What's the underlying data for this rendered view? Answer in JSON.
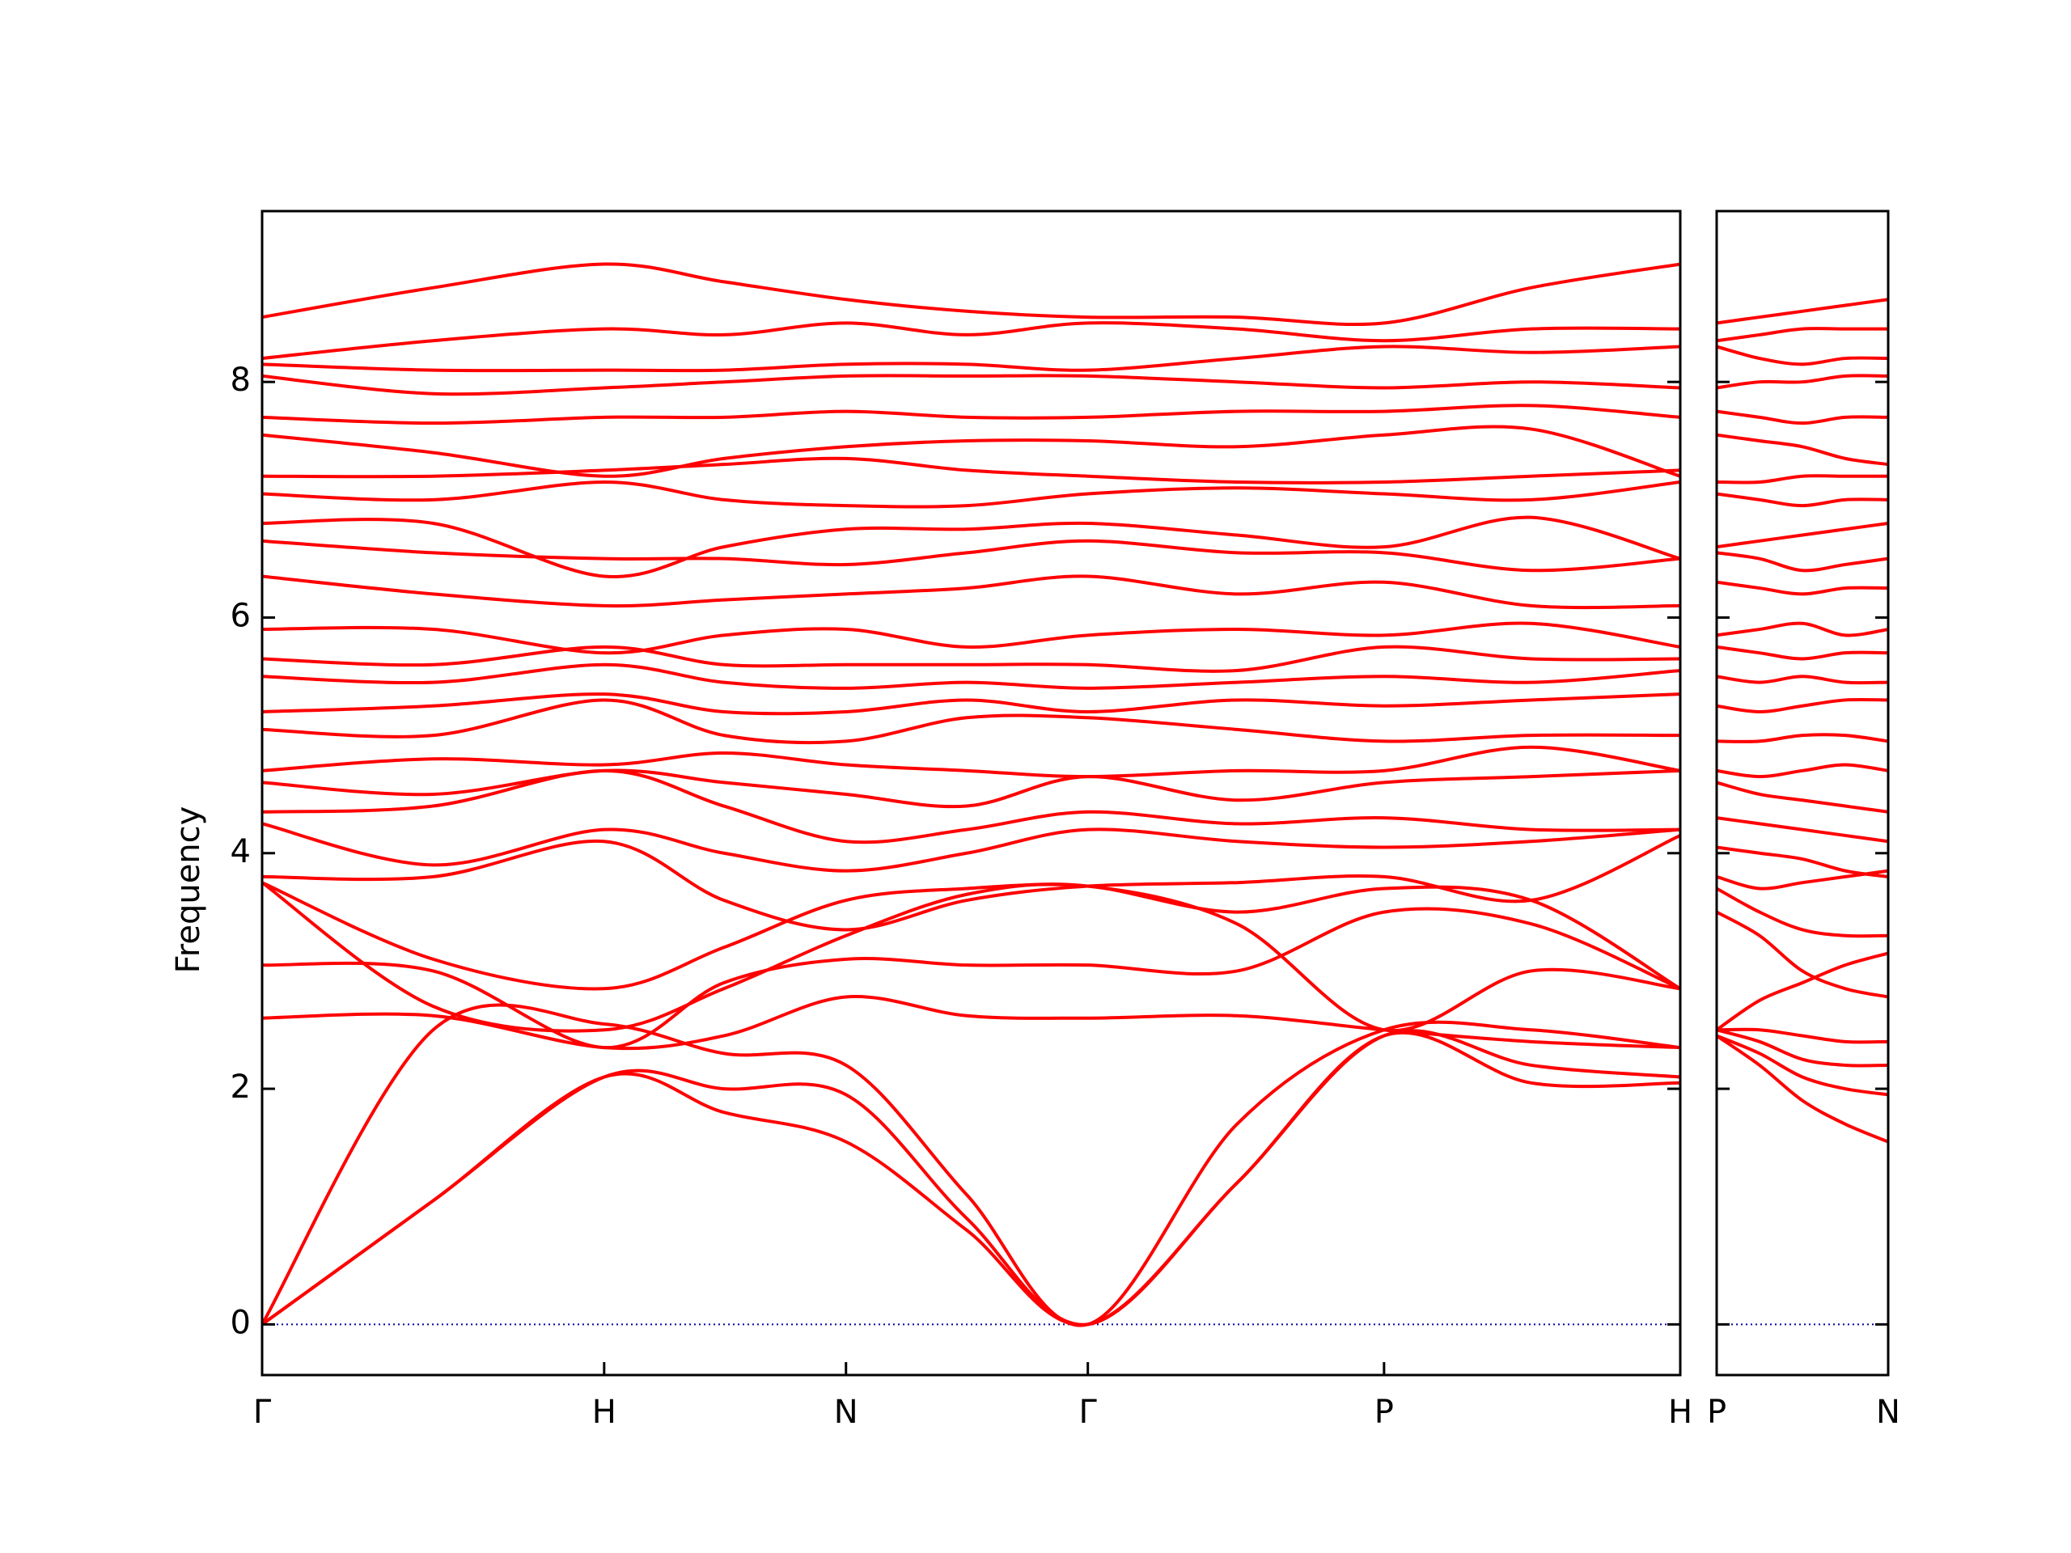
{
  "chart_data": [
    {
      "type": "line",
      "ylabel": "Frequency",
      "color": "#ff0000",
      "x": [
        0,
        0.5,
        1,
        1.35,
        1.707,
        2.06,
        2.414,
        2.85,
        3.28,
        3.71,
        4.146
      ],
      "xlim": [
        0,
        4.146
      ],
      "xticks": [
        {
          "value": 0,
          "label": "Γ"
        },
        {
          "value": 1,
          "label": "H"
        },
        {
          "value": 1.707,
          "label": "N"
        },
        {
          "value": 2.414,
          "label": "Γ"
        },
        {
          "value": 3.28,
          "label": "P"
        },
        {
          "value": 4.146,
          "label": "H"
        }
      ],
      "ylim": [
        -0.43,
        9.45
      ],
      "yticks": [
        0,
        2,
        4,
        6,
        8
      ],
      "series": [
        {
          "values": [
            0,
            1.05,
            2.1,
            1.8,
            1.55,
            0.8,
            0,
            1.2,
            2.45,
            2.2,
            2.1
          ]
        },
        {
          "values": [
            0,
            1.05,
            2.1,
            2.0,
            1.95,
            0.9,
            0,
            1.2,
            2.45,
            2.05,
            2.05
          ]
        },
        {
          "values": [
            0,
            2.5,
            2.55,
            2.3,
            2.2,
            1.1,
            0,
            1.7,
            2.5,
            2.5,
            2.35
          ]
        },
        {
          "values": [
            2.6,
            2.62,
            2.35,
            2.45,
            2.78,
            2.62,
            2.6,
            2.62,
            2.5,
            2.4,
            2.35
          ]
        },
        {
          "values": [
            3.05,
            3.0,
            2.35,
            2.9,
            3.1,
            3.05,
            3.05,
            3.0,
            3.5,
            3.4,
            2.85
          ]
        },
        {
          "values": [
            3.75,
            2.7,
            2.5,
            2.85,
            3.3,
            3.65,
            3.72,
            3.4,
            2.5,
            3.0,
            2.85
          ]
        },
        {
          "values": [
            3.75,
            3.1,
            2.85,
            3.2,
            3.6,
            3.7,
            3.72,
            3.5,
            3.7,
            3.6,
            2.85
          ]
        },
        {
          "values": [
            3.8,
            3.8,
            4.1,
            3.6,
            3.35,
            3.6,
            3.72,
            3.75,
            3.8,
            3.6,
            4.15
          ]
        },
        {
          "values": [
            4.25,
            3.9,
            4.2,
            4.0,
            3.85,
            4.0,
            4.2,
            4.1,
            4.05,
            4.1,
            4.2
          ]
        },
        {
          "values": [
            4.35,
            4.4,
            4.7,
            4.4,
            4.1,
            4.2,
            4.35,
            4.25,
            4.3,
            4.2,
            4.2
          ]
        },
        {
          "values": [
            4.6,
            4.5,
            4.7,
            4.6,
            4.5,
            4.4,
            4.65,
            4.45,
            4.6,
            4.65,
            4.7
          ]
        },
        {
          "values": [
            4.7,
            4.8,
            4.75,
            4.85,
            4.75,
            4.7,
            4.65,
            4.7,
            4.7,
            4.9,
            4.7
          ]
        },
        {
          "values": [
            5.05,
            5.0,
            5.3,
            5.0,
            4.95,
            5.15,
            5.15,
            5.05,
            4.95,
            5.0,
            5.0
          ]
        },
        {
          "values": [
            5.2,
            5.25,
            5.35,
            5.2,
            5.2,
            5.3,
            5.2,
            5.3,
            5.25,
            5.3,
            5.35
          ]
        },
        {
          "values": [
            5.5,
            5.45,
            5.6,
            5.45,
            5.4,
            5.45,
            5.4,
            5.45,
            5.5,
            5.45,
            5.55
          ]
        },
        {
          "values": [
            5.65,
            5.6,
            5.75,
            5.6,
            5.6,
            5.6,
            5.6,
            5.55,
            5.75,
            5.65,
            5.65
          ]
        },
        {
          "values": [
            5.9,
            5.9,
            5.7,
            5.85,
            5.9,
            5.75,
            5.85,
            5.9,
            5.85,
            5.95,
            5.75
          ]
        },
        {
          "values": [
            6.35,
            6.2,
            6.1,
            6.15,
            6.2,
            6.25,
            6.35,
            6.2,
            6.3,
            6.1,
            6.1
          ]
        },
        {
          "values": [
            6.65,
            6.55,
            6.5,
            6.5,
            6.45,
            6.55,
            6.65,
            6.55,
            6.55,
            6.4,
            6.5
          ]
        },
        {
          "values": [
            6.8,
            6.8,
            6.35,
            6.6,
            6.75,
            6.75,
            6.8,
            6.7,
            6.6,
            6.85,
            6.5
          ]
        },
        {
          "values": [
            7.05,
            7.0,
            7.15,
            7.0,
            6.95,
            6.95,
            7.05,
            7.1,
            7.05,
            7.0,
            7.15
          ]
        },
        {
          "values": [
            7.2,
            7.2,
            7.25,
            7.3,
            7.35,
            7.25,
            7.2,
            7.15,
            7.15,
            7.2,
            7.25
          ]
        },
        {
          "values": [
            7.55,
            7.4,
            7.2,
            7.35,
            7.45,
            7.5,
            7.5,
            7.45,
            7.55,
            7.6,
            7.2
          ]
        },
        {
          "values": [
            7.7,
            7.65,
            7.7,
            7.7,
            7.75,
            7.7,
            7.7,
            7.75,
            7.75,
            7.8,
            7.7
          ]
        },
        {
          "values": [
            8.05,
            7.9,
            7.95,
            8.0,
            8.05,
            8.05,
            8.05,
            8.0,
            7.95,
            8.0,
            7.95
          ]
        },
        {
          "values": [
            8.15,
            8.1,
            8.1,
            8.1,
            8.15,
            8.15,
            8.1,
            8.2,
            8.3,
            8.25,
            8.3
          ]
        },
        {
          "values": [
            8.2,
            8.35,
            8.45,
            8.4,
            8.5,
            8.4,
            8.5,
            8.45,
            8.35,
            8.45,
            8.45
          ]
        },
        {
          "values": [
            8.55,
            8.8,
            9.0,
            8.85,
            8.7,
            8.6,
            8.55,
            8.55,
            8.5,
            8.8,
            9.0
          ]
        }
      ]
    },
    {
      "type": "line",
      "color": "#ff0000",
      "x": [
        0,
        0.125,
        0.25,
        0.375,
        0.5
      ],
      "xlim": [
        0,
        0.5
      ],
      "xticks": [
        {
          "value": 0,
          "label": "P"
        },
        {
          "value": 0.5,
          "label": "N"
        }
      ],
      "ylim": [
        -0.43,
        9.45
      ],
      "yticks": [
        0,
        2,
        4,
        6,
        8
      ],
      "series": [
        {
          "values": [
            2.45,
            2.2,
            1.9,
            1.7,
            1.55
          ]
        },
        {
          "values": [
            2.45,
            2.3,
            2.1,
            2.0,
            1.95
          ]
        },
        {
          "values": [
            2.5,
            2.4,
            2.25,
            2.2,
            2.2
          ]
        },
        {
          "values": [
            2.5,
            2.5,
            2.45,
            2.4,
            2.4
          ]
        },
        {
          "values": [
            3.5,
            3.3,
            3.0,
            2.85,
            2.78
          ]
        },
        {
          "values": [
            2.5,
            2.75,
            2.9,
            3.05,
            3.15
          ]
        },
        {
          "values": [
            3.7,
            3.5,
            3.35,
            3.3,
            3.3
          ]
        },
        {
          "values": [
            3.8,
            3.7,
            3.75,
            3.8,
            3.85
          ]
        },
        {
          "values": [
            4.05,
            4.0,
            3.95,
            3.85,
            3.8
          ]
        },
        {
          "values": [
            4.3,
            4.25,
            4.2,
            4.15,
            4.1
          ]
        },
        {
          "values": [
            4.6,
            4.5,
            4.45,
            4.4,
            4.35
          ]
        },
        {
          "values": [
            4.7,
            4.65,
            4.7,
            4.75,
            4.7
          ]
        },
        {
          "values": [
            4.95,
            4.95,
            5.0,
            5.0,
            4.95
          ]
        },
        {
          "values": [
            5.25,
            5.2,
            5.25,
            5.3,
            5.3
          ]
        },
        {
          "values": [
            5.5,
            5.45,
            5.5,
            5.45,
            5.45
          ]
        },
        {
          "values": [
            5.75,
            5.7,
            5.65,
            5.7,
            5.7
          ]
        },
        {
          "values": [
            5.85,
            5.9,
            5.95,
            5.85,
            5.9
          ]
        },
        {
          "values": [
            6.3,
            6.25,
            6.2,
            6.25,
            6.25
          ]
        },
        {
          "values": [
            6.55,
            6.5,
            6.4,
            6.45,
            6.5
          ]
        },
        {
          "values": [
            6.6,
            6.65,
            6.7,
            6.75,
            6.8
          ]
        },
        {
          "values": [
            7.05,
            7.0,
            6.95,
            7.0,
            7.0
          ]
        },
        {
          "values": [
            7.15,
            7.15,
            7.2,
            7.2,
            7.2
          ]
        },
        {
          "values": [
            7.55,
            7.5,
            7.45,
            7.35,
            7.3
          ]
        },
        {
          "values": [
            7.75,
            7.7,
            7.65,
            7.7,
            7.7
          ]
        },
        {
          "values": [
            7.95,
            8.0,
            8.0,
            8.05,
            8.05
          ]
        },
        {
          "values": [
            8.3,
            8.2,
            8.15,
            8.2,
            8.2
          ]
        },
        {
          "values": [
            8.35,
            8.4,
            8.45,
            8.45,
            8.45
          ]
        },
        {
          "values": [
            8.5,
            8.55,
            8.6,
            8.65,
            8.7
          ]
        }
      ]
    }
  ]
}
